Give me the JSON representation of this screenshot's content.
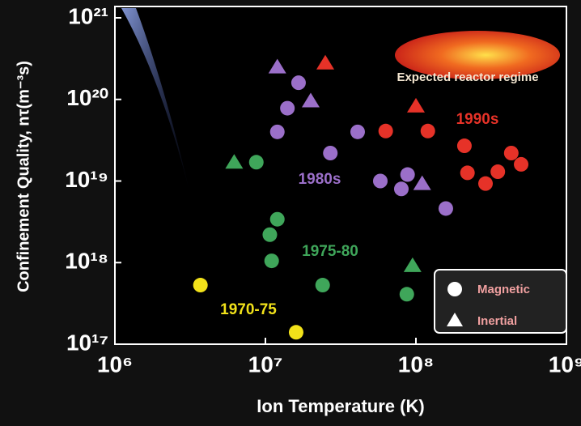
{
  "chart_data": {
    "type": "scatter",
    "x_label": "Ion Temperature (K)",
    "y_label": "Confinement Quality, nτ(m⁻³s)",
    "annotation": "Expected reactor regime",
    "log_x": true,
    "log_y": true,
    "xlim": [
      1000000.0,
      1000000000.0
    ],
    "ylim": [
      1e+17,
      1e+21
    ],
    "xticks": [
      {
        "value": 1000000.0,
        "label": "10⁶"
      },
      {
        "value": 10000000.0,
        "label": "10⁷"
      },
      {
        "value": 100000000.0,
        "label": "10⁸"
      },
      {
        "value": 1000000000.0,
        "label": "10⁹"
      }
    ],
    "yticks": [
      {
        "value": 1e+17,
        "label": "10¹⁷"
      },
      {
        "value": 1e+18,
        "label": "10¹⁸"
      },
      {
        "value": 1e+19,
        "label": "10¹⁹"
      },
      {
        "value": 1e+20,
        "label": "10²⁰"
      },
      {
        "value": 1e+21,
        "label": "10²¹"
      }
    ],
    "legend": {
      "circle": "Magnetic",
      "triangle": "Inertial"
    },
    "series": [
      {
        "name": "1970-75",
        "color": "#f2e21a",
        "circle": {
          "x": [
            3700000.0,
            16000000.0
          ],
          "y": [
            5.3e+17,
            1.4e+17
          ]
        },
        "triangle": {
          "x": [],
          "y": []
        }
      },
      {
        "name": "1975-80",
        "color": "#3fa65a",
        "circle": {
          "x": [
            8700000.0,
            12000000.0,
            10700000.0,
            11000000.0,
            24000000.0,
            87000000.0
          ],
          "y": [
            1.7e+19,
            3.4e+18,
            2.2e+18,
            1.05e+18,
            5.3e+17,
            4.1e+17
          ]
        },
        "triangle": {
          "x": [
            6200000.0,
            95000000.0
          ],
          "y": [
            1.7e+19,
            9.2e+17
          ]
        }
      },
      {
        "name": "1980s",
        "color": "#9b6fc9",
        "circle": {
          "x": [
            16600000.0,
            14000000.0,
            12000000.0,
            27000000.0,
            41000000.0,
            58000000.0,
            88000000.0,
            80000000.0,
            158000000.0
          ],
          "y": [
            1.6e+20,
            7.8e+19,
            4e+19,
            2.2e+19,
            4e+19,
            1e+19,
            1.2e+19,
            8e+18,
            4.6e+18
          ]
        },
        "triangle": {
          "x": [
            12000000.0,
            20000000.0,
            110000000.0
          ],
          "y": [
            2.5e+20,
            9.6e+19,
            9.3e+18
          ]
        }
      },
      {
        "name": "1990s",
        "color": "#e63228",
        "circle": {
          "x": [
            63000000.0,
            120000000.0,
            210000000.0,
            220000000.0,
            290000000.0,
            350000000.0,
            430000000.0,
            500000000.0
          ],
          "y": [
            4.1e+19,
            4.1e+19,
            2.7e+19,
            1.26e+19,
            9.3e+18,
            1.3e+19,
            2.2e+19,
            1.6e+19
          ]
        },
        "triangle": {
          "x": [
            25000000.0,
            100000000.0
          ],
          "y": [
            2.8e+20,
            8.3e+19
          ]
        }
      }
    ]
  }
}
